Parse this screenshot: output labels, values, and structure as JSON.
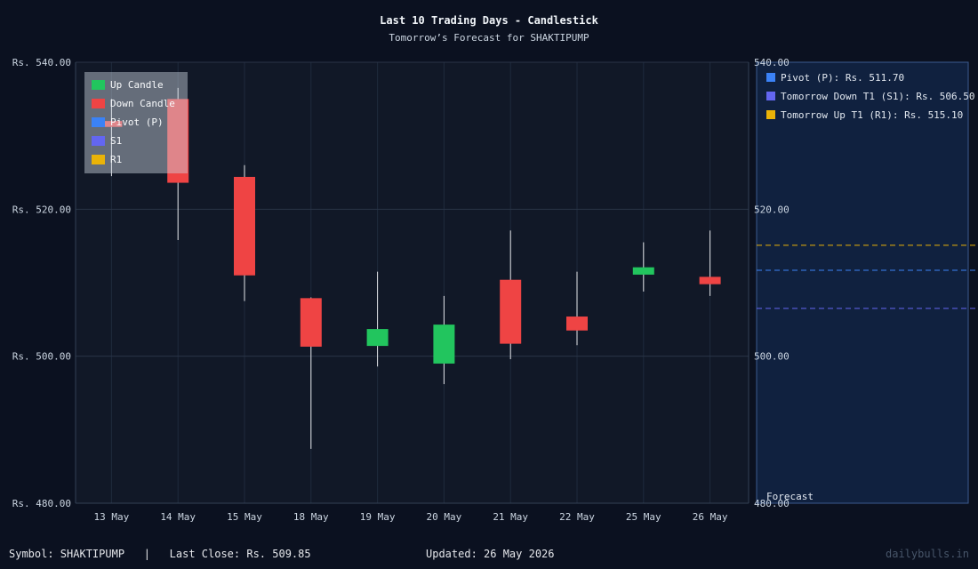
{
  "header": {
    "title": "Last 10 Trading Days - Candlestick",
    "subtitle": "Tomorrow’s Forecast for SHAKTIPUMP"
  },
  "footer": {
    "symbol": "Symbol: SHAKTIPUMP",
    "separator": "|",
    "last_close": "Last Close: Rs. 509.85",
    "updated": "Updated: 26 May 2026",
    "brand": "dailybulls.in"
  },
  "chart_data": {
    "type": "candlestick",
    "title": "Last 10 Trading Days - Candlestick",
    "subtitle": "Tomorrow’s Forecast for SHAKTIPUMP",
    "ylim": [
      480,
      540
    ],
    "y_ticks": [
      480,
      500,
      520,
      540
    ],
    "y_tick_labels": [
      "Rs. 480.00",
      "Rs. 500.00",
      "Rs. 520.00",
      "Rs. 540.00"
    ],
    "right_axis_tick_labels": [
      "480.00",
      "500.00",
      "520.00",
      "540.00"
    ],
    "categories": [
      "13 May",
      "14 May",
      "15 May",
      "18 May",
      "19 May",
      "20 May",
      "21 May",
      "22 May",
      "25 May",
      "26 May"
    ],
    "candles": [
      {
        "date": "13 May",
        "open": 532.0,
        "high": 535.0,
        "low": 524.5,
        "close": 531.2
      },
      {
        "date": "14 May",
        "open": 535.0,
        "high": 536.5,
        "low": 515.8,
        "close": 523.6
      },
      {
        "date": "15 May",
        "open": 524.4,
        "high": 526.0,
        "low": 507.5,
        "close": 511.0
      },
      {
        "date": "18 May",
        "open": 507.9,
        "high": 508.0,
        "low": 487.4,
        "close": 501.3
      },
      {
        "date": "19 May",
        "open": 501.4,
        "high": 511.5,
        "low": 498.6,
        "close": 503.7
      },
      {
        "date": "20 May",
        "open": 499.0,
        "high": 508.2,
        "low": 496.2,
        "close": 504.3
      },
      {
        "date": "21 May",
        "open": 510.4,
        "high": 517.1,
        "low": 499.6,
        "close": 501.7
      },
      {
        "date": "22 May",
        "open": 505.4,
        "high": 511.5,
        "low": 501.5,
        "close": 503.5
      },
      {
        "date": "25 May",
        "open": 511.1,
        "high": 515.5,
        "low": 508.8,
        "close": 512.1
      },
      {
        "date": "26 May",
        "open": 510.8,
        "high": 517.1,
        "low": 508.2,
        "close": 509.8
      }
    ],
    "legend": {
      "position": "top-left",
      "entries": [
        {
          "label": "Up Candle",
          "color": "#22c55e"
        },
        {
          "label": "Down Candle",
          "color": "#ef4444"
        },
        {
          "label": "Pivot (P)",
          "color": "#3b82f6"
        },
        {
          "label": "S1",
          "color": "#6366f1"
        },
        {
          "label": "R1",
          "color": "#eab308"
        }
      ]
    },
    "forecast": {
      "label": "Forecast",
      "levels": [
        {
          "name": "Pivot (P)",
          "label": "Pivot (P): Rs. 511.70",
          "value": 511.7,
          "color": "#3b82f6"
        },
        {
          "name": "S1",
          "label": "Tomorrow Down T1 (S1): Rs. 506.50",
          "value": 506.5,
          "color": "#6366f1"
        },
        {
          "name": "R1",
          "label": "Tomorrow Up T1 (R1): Rs. 515.10",
          "value": 515.1,
          "color": "#eab308"
        }
      ]
    },
    "colors": {
      "up": "#22c55e",
      "down": "#ef4444",
      "background": "#0b1120",
      "plot_background": "#111827",
      "forecast_background": "#10213f"
    },
    "grid": true
  }
}
